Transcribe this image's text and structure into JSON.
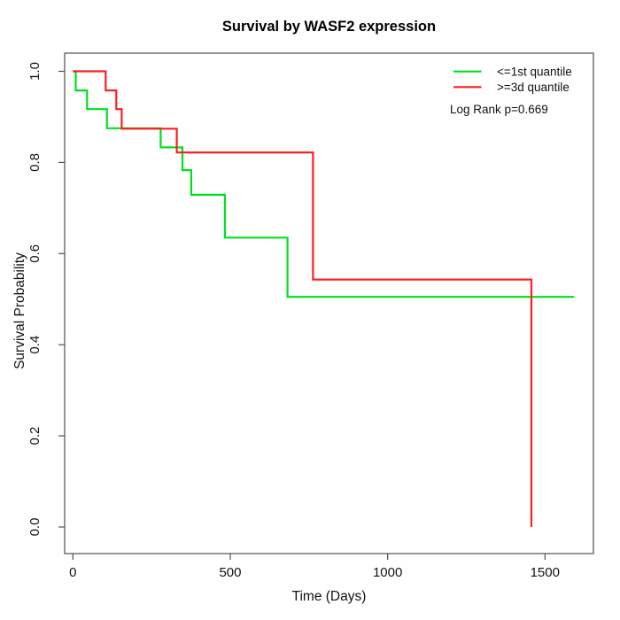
{
  "figure": {
    "title": "Survival by WASF2 expression",
    "x_axis": {
      "label": "Time (Days)",
      "ticks": [
        "0",
        "500",
        "1000",
        "1500"
      ]
    },
    "y_axis": {
      "label": "Survival Probability",
      "ticks": [
        "0.0",
        "0.2",
        "0.4",
        "0.6",
        "0.8",
        "1.0"
      ]
    },
    "legend": {
      "entries": [
        {
          "label": "<=1st quantile",
          "color": "#00e01e"
        },
        {
          "label": ">=3d quantile",
          "color": "#fc2020"
        }
      ],
      "note": "Log Rank p=0.669"
    }
  },
  "chart_data": {
    "type": "line",
    "subtype": "kaplan_meier_step",
    "title": "Survival by WASF2 expression",
    "xlabel": "Time (Days)",
    "ylabel": "Survival Probability",
    "xlim": [
      0,
      1600
    ],
    "ylim": [
      0.0,
      1.0
    ],
    "x_ticks": [
      0,
      500,
      1000,
      1500
    ],
    "y_ticks": [
      0.0,
      0.2,
      0.4,
      0.6,
      0.8,
      1.0
    ],
    "grid": false,
    "legend_position": "top-right",
    "annotations": [
      "Log Rank p=0.669"
    ],
    "series": [
      {
        "name": "<=1st quantile",
        "key": "low-expression",
        "color": "#00e01e",
        "step_points": [
          [
            0,
            1.0
          ],
          [
            9,
            0.958
          ],
          [
            45,
            0.917
          ],
          [
            108,
            0.875
          ],
          [
            279,
            0.833
          ],
          [
            348,
            0.783
          ],
          [
            376,
            0.729
          ],
          [
            483,
            0.635
          ],
          [
            682,
            0.505
          ],
          [
            1593,
            0.505
          ]
        ]
      },
      {
        "name": ">=3d quantile",
        "key": "high-expression",
        "color": "#fc2020",
        "step_points": [
          [
            0,
            1.0
          ],
          [
            104,
            0.958
          ],
          [
            138,
            0.917
          ],
          [
            155,
            0.874
          ],
          [
            330,
            0.822
          ],
          [
            763,
            0.543
          ],
          [
            1457,
            0.543
          ],
          [
            1457,
            0.0
          ]
        ]
      }
    ]
  }
}
